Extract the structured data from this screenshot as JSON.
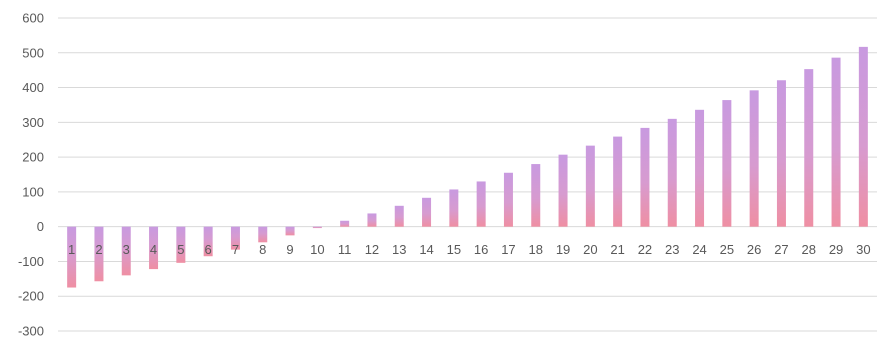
{
  "chart_data": {
    "type": "bar",
    "title": "",
    "xlabel": "",
    "ylabel": "",
    "ylim": [
      -300,
      600
    ],
    "yticks": [
      600,
      500,
      400,
      300,
      200,
      100,
      0,
      -100,
      -200,
      -300
    ],
    "grid": true,
    "legend": "none",
    "categories": [
      "1",
      "2",
      "3",
      "4",
      "5",
      "6",
      "7",
      "8",
      "9",
      "10",
      "11",
      "12",
      "13",
      "14",
      "15",
      "16",
      "17",
      "18",
      "19",
      "20",
      "21",
      "22",
      "23",
      "24",
      "25",
      "26",
      "27",
      "28",
      "29",
      "30"
    ],
    "values": [
      -175,
      -157,
      -140,
      -122,
      -104,
      -85,
      -66,
      -45,
      -25,
      -4,
      17,
      38,
      60,
      83,
      107,
      130,
      155,
      180,
      207,
      233,
      259,
      284,
      310,
      336,
      364,
      392,
      421,
      453,
      486,
      517
    ],
    "colors": {
      "top": "#c89ae0",
      "bottom": "#ef8fa3",
      "grid": "#d9d9d9",
      "text": "#595959"
    }
  }
}
